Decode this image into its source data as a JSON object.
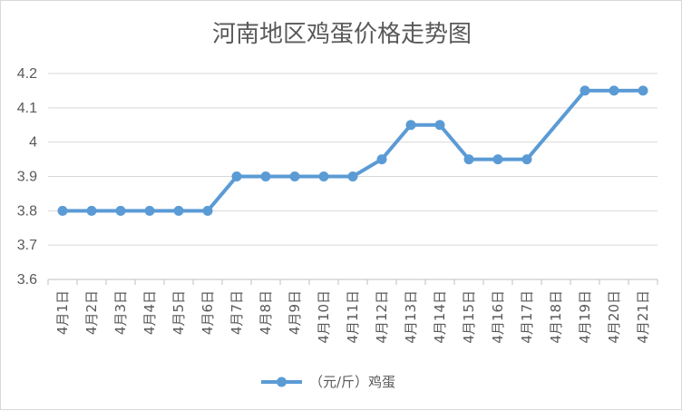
{
  "chart_data": {
    "type": "line",
    "title": "河南地区鸡蛋价格走势图",
    "xlabel": "",
    "ylabel": "",
    "categories": [
      "4月1日",
      "4月2日",
      "4月3日",
      "4月4日",
      "4月5日",
      "4月6日",
      "4月7日",
      "4月8日",
      "4月9日",
      "4月10日",
      "4月11日",
      "4月12日",
      "4月13日",
      "4月14日",
      "4月15日",
      "4月16日",
      "4月17日",
      "4月18日",
      "4月19日",
      "4月20日",
      "4月21日"
    ],
    "series": [
      {
        "name": "（元/斤）鸡蛋",
        "color": "#5b9bd5",
        "values": [
          3.8,
          3.8,
          3.8,
          3.8,
          3.8,
          3.8,
          3.9,
          3.9,
          3.9,
          3.9,
          3.9,
          3.95,
          4.05,
          4.05,
          3.95,
          3.95,
          3.95,
          null,
          4.15,
          4.15,
          4.15
        ]
      }
    ],
    "ylim": [
      3.6,
      4.2
    ],
    "yticks": [
      "3.6",
      "3.7",
      "3.8",
      "3.9",
      "4",
      "4.1",
      "4.2"
    ],
    "grid": true,
    "legend_position": "bottom"
  }
}
